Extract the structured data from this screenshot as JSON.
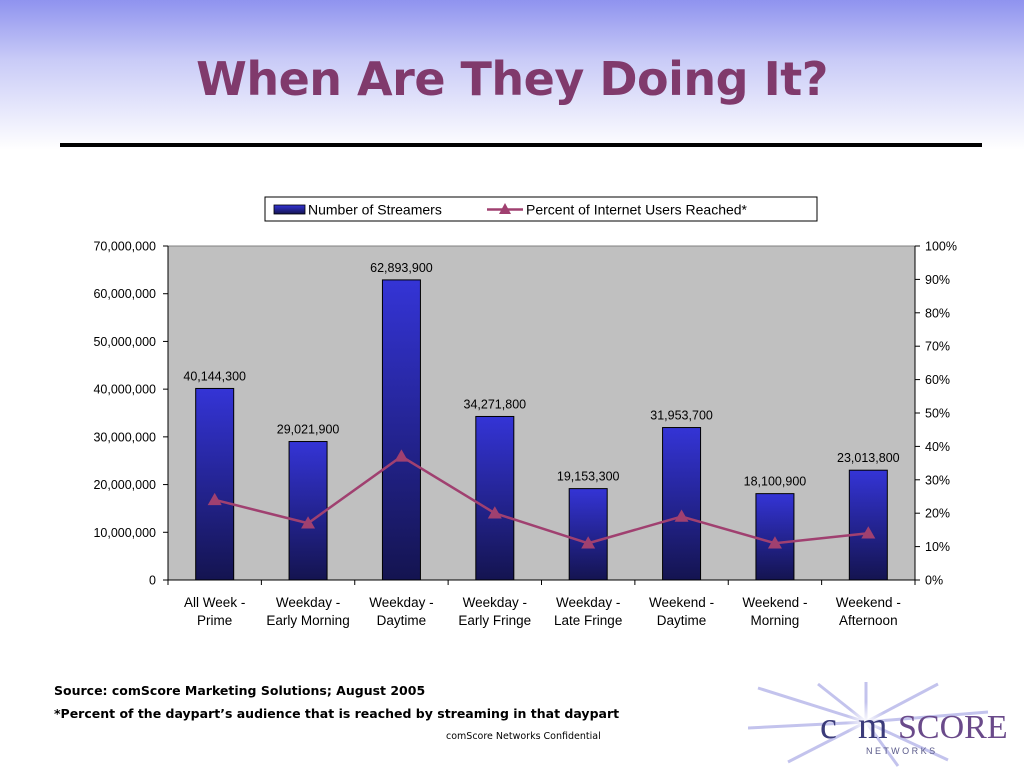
{
  "slide": {
    "title": "When Are They Doing It?",
    "source_note": "Source: comScore Marketing Solutions; August 2005",
    "footnote": "*Percent of the daypart’s audience that is reached by streaming in that daypart",
    "confidential": "comScore Networks Confidential"
  },
  "logo": {
    "text_co": "c",
    "text_m": "m",
    "text_score": "SCORE",
    "text_networks": "N E T W O R K S"
  },
  "colors": {
    "title": "#803a6c",
    "bar_top": "#3434d6",
    "bar_bottom": "#141450",
    "line": "#a04070",
    "plot_bg": "#c0c0c0"
  },
  "chart_data": {
    "type": "bar",
    "categories": [
      [
        "All Week -",
        "Prime"
      ],
      [
        "Weekday -",
        "Early Morning"
      ],
      [
        "Weekday -",
        "Daytime"
      ],
      [
        "Weekday -",
        "Early Fringe"
      ],
      [
        "Weekday -",
        "Late Fringe"
      ],
      [
        "Weekend -",
        "Daytime"
      ],
      [
        "Weekend  -",
        "Morning"
      ],
      [
        "Weekend -",
        "Afternoon"
      ]
    ],
    "series": [
      {
        "name": "Number of Streamers",
        "type": "bar",
        "axis": "left",
        "values": [
          40144300,
          29021900,
          62893900,
          34271800,
          19153300,
          31953700,
          18100900,
          23013800
        ],
        "labels": [
          "40,144,300",
          "29,021,900",
          "62,893,900",
          "34,271,800",
          "19,153,300",
          "31,953,700",
          "18,100,900",
          "23,013,800"
        ]
      },
      {
        "name": "Percent of Internet Users Reached*",
        "type": "line",
        "axis": "right",
        "marker": "triangle",
        "values": [
          24,
          17,
          37,
          20,
          11,
          19,
          11,
          14
        ]
      }
    ],
    "y_left": {
      "ylim": [
        0,
        70000000
      ],
      "ticks": [
        "0",
        "10,000,000",
        "20,000,000",
        "30,000,000",
        "40,000,000",
        "50,000,000",
        "60,000,000",
        "70,000,000"
      ]
    },
    "y_right": {
      "ylim": [
        0,
        100
      ],
      "ticks": [
        "0%",
        "10%",
        "20%",
        "30%",
        "40%",
        "50%",
        "60%",
        "70%",
        "80%",
        "90%",
        "100%"
      ]
    },
    "grid": false,
    "legend": "top"
  }
}
